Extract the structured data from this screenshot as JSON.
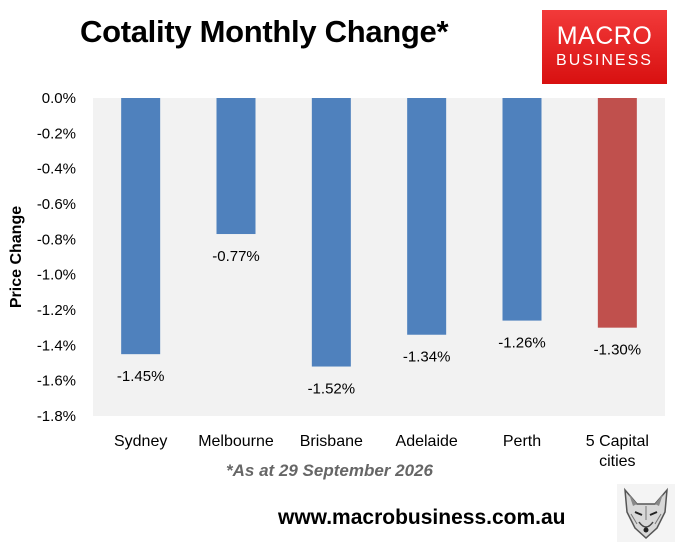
{
  "title": "Cotality Monthly Change*",
  "logo": {
    "line1": "MACRO",
    "line2": "BUSINESS",
    "bg": "#e8201f"
  },
  "footnote": "*As at 29 September 2026",
  "url": "www.macrobusiness.com.au",
  "fox_icon": "fox-head-icon",
  "chart_data": {
    "type": "bar",
    "ylabel": "Price Change",
    "ylim": [
      -1.8,
      0.0
    ],
    "ytick_step": 0.2,
    "grid": false,
    "plot_bg": "#f2f2f2",
    "categories": [
      "Sydney",
      "Melbourne",
      "Brisbane",
      "Adelaide",
      "Perth",
      "5 Capital cities"
    ],
    "category_lines": [
      [
        "Sydney"
      ],
      [
        "Melbourne"
      ],
      [
        "Brisbane"
      ],
      [
        "Adelaide"
      ],
      [
        "Perth"
      ],
      [
        "5 Capital",
        "cities"
      ]
    ],
    "values": [
      -1.45,
      -0.77,
      -1.52,
      -1.34,
      -1.26,
      -1.3
    ],
    "labels": [
      "-1.45%",
      "-0.77%",
      "-1.52%",
      "-1.34%",
      "-1.26%",
      "-1.30%"
    ],
    "colors": [
      "#4f81bd",
      "#4f81bd",
      "#4f81bd",
      "#4f81bd",
      "#4f81bd",
      "#c0504d"
    ]
  }
}
